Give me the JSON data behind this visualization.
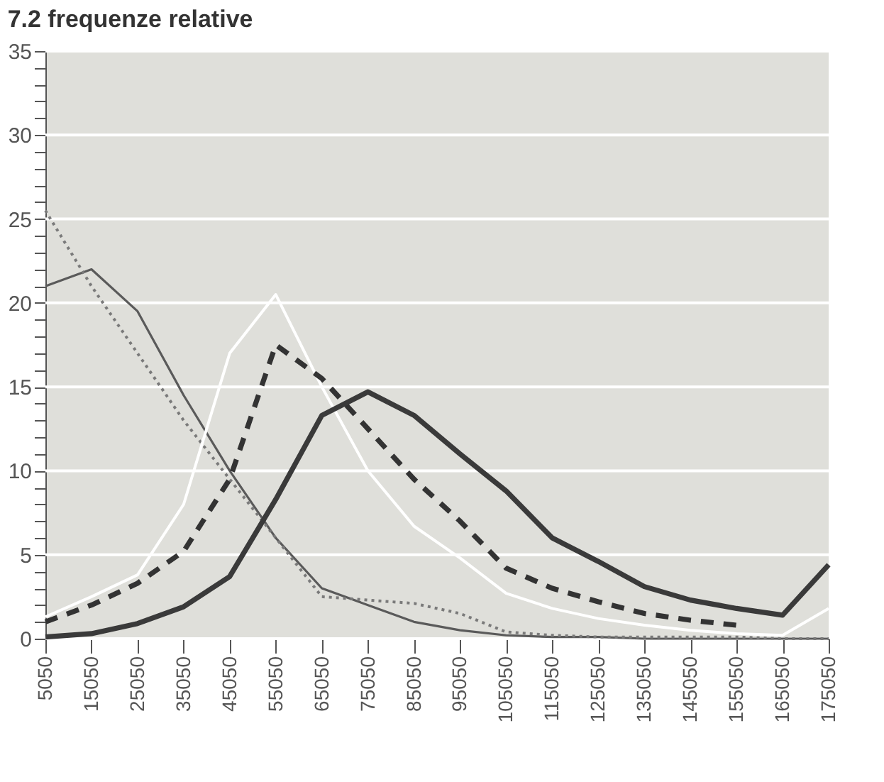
{
  "chart_data": {
    "type": "line",
    "title": "7.2    frequenze relative",
    "categories": [
      "5050",
      "15050",
      "25050",
      "35050",
      "45050",
      "55050",
      "65050",
      "75050",
      "85050",
      "95050",
      "105050",
      "115050",
      "125050",
      "135050",
      "145050",
      "155050",
      "165050",
      "175050"
    ],
    "series": [
      {
        "color": "#5a5a5a",
        "line_style": "solid",
        "values": [
          21,
          22,
          19.5,
          14.5,
          10,
          6,
          3,
          2,
          1,
          0.5,
          0.2,
          0.1,
          0.1,
          0,
          0,
          0,
          0,
          0
        ]
      },
      {
        "color": "#7a7a7a",
        "line_style": "dotted",
        "values": [
          25.5,
          21,
          17,
          13,
          9.5,
          6,
          2.5,
          2.3,
          2.1,
          1.5,
          0.4,
          0.2,
          0.1,
          0.1,
          0.1,
          0.1,
          0,
          0
        ]
      },
      {
        "color": "#ffffff",
        "line_style": "solid",
        "values": [
          1.3,
          2.5,
          3.8,
          8,
          17,
          20.5,
          15,
          10,
          6.7,
          4.8,
          2.7,
          1.8,
          1.2,
          0.8,
          0.5,
          0.3,
          0.2,
          1.8
        ]
      },
      {
        "color": "#333333",
        "line_style": "dashed",
        "values": [
          1.0,
          2.0,
          3.3,
          5.2,
          9.5,
          17.5,
          15.5,
          12.5,
          9.5,
          7,
          4.2,
          3,
          2.2,
          1.5,
          1.1,
          0.8,
          null,
          null
        ]
      },
      {
        "color": "#3a3a3a",
        "line_style": "solid",
        "values": [
          0.1,
          0.3,
          0.9,
          1.9,
          3.7,
          8.3,
          13.3,
          14.7,
          13.3,
          11,
          8.8,
          6.0,
          4.6,
          3.1,
          2.3,
          1.8,
          1.4,
          4.4
        ]
      }
    ],
    "ylim": [
      0,
      35
    ],
    "yticks": [
      0,
      {
        "value": 1,
        "label": null
      },
      {
        "value": 2,
        "label": null
      },
      {
        "value": 3,
        "label": null
      },
      {
        "value": 4,
        "label": null
      },
      5,
      {
        "value": 6,
        "label": null
      },
      {
        "value": 7,
        "label": null
      },
      {
        "value": 8,
        "label": null
      },
      {
        "value": 9,
        "label": null
      },
      10,
      {
        "value": 11,
        "label": null
      },
      {
        "value": 12,
        "label": null
      },
      {
        "value": 13,
        "label": null
      },
      {
        "value": 14,
        "label": null
      },
      15,
      {
        "value": 16,
        "label": null
      },
      {
        "value": 17,
        "label": null
      },
      {
        "value": 18,
        "label": null
      },
      {
        "value": 19,
        "label": null
      },
      20,
      {
        "value": 21,
        "label": null
      },
      {
        "value": 22,
        "label": null
      },
      {
        "value": 23,
        "label": null
      },
      {
        "value": 24,
        "label": null
      },
      25,
      {
        "value": 26,
        "label": null
      },
      {
        "value": 27,
        "label": null
      },
      {
        "value": 28,
        "label": null
      },
      {
        "value": 29,
        "label": null
      },
      30,
      {
        "value": 31,
        "label": null
      },
      {
        "value": 32,
        "label": null
      },
      {
        "value": 33,
        "label": null
      },
      {
        "value": 34,
        "label": null
      },
      35
    ],
    "grid": "y"
  }
}
